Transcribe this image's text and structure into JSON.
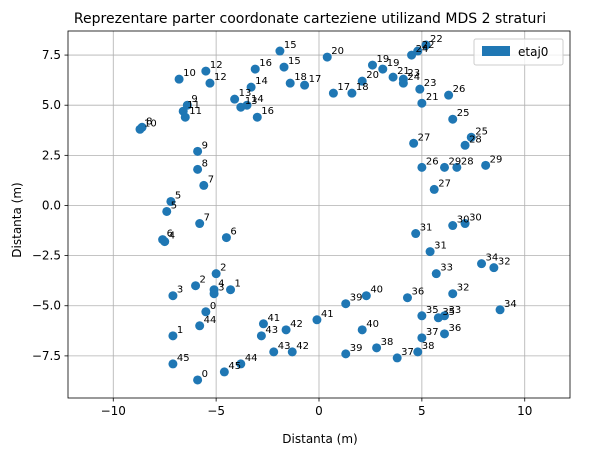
{
  "chart_data": {
    "type": "scatter",
    "title": "Reprezentare parter coordonate carteziene utilizand MDS 2 straturi",
    "xlabel": "Distanta (m)",
    "ylabel": "Distanta (m)",
    "xlim": [
      -12.2,
      12.2
    ],
    "ylim": [
      -9.6,
      8.7
    ],
    "xticks": [
      -10,
      -5,
      0,
      5,
      10
    ],
    "yticks": [
      -7.5,
      -5.0,
      -2.5,
      0.0,
      2.5,
      5.0,
      7.5
    ],
    "grid": true,
    "legend_position": "top-right",
    "color": "#1f77b4",
    "series": [
      {
        "name": "etaj0",
        "points": [
          {
            "x": 5.2,
            "y": 8.0,
            "label": "22"
          },
          {
            "x": 4.5,
            "y": 7.5,
            "label": "24"
          },
          {
            "x": 4.8,
            "y": 7.7,
            "label": "22"
          },
          {
            "x": -1.9,
            "y": 7.7,
            "label": "15"
          },
          {
            "x": 0.4,
            "y": 7.4,
            "label": "20"
          },
          {
            "x": -1.7,
            "y": 6.9,
            "label": "15"
          },
          {
            "x": -3.1,
            "y": 6.8,
            "label": "16"
          },
          {
            "x": -5.5,
            "y": 6.7,
            "label": "12"
          },
          {
            "x": -6.8,
            "y": 6.3,
            "label": "10"
          },
          {
            "x": -5.3,
            "y": 6.1,
            "label": "12"
          },
          {
            "x": 2.6,
            "y": 7.0,
            "label": "19"
          },
          {
            "x": 3.1,
            "y": 6.8,
            "label": "19"
          },
          {
            "x": 3.6,
            "y": 6.4,
            "label": "21"
          },
          {
            "x": 4.1,
            "y": 6.3,
            "label": "23"
          },
          {
            "x": 4.1,
            "y": 6.1,
            "label": "24"
          },
          {
            "x": 2.1,
            "y": 6.2,
            "label": "20"
          },
          {
            "x": -1.4,
            "y": 6.1,
            "label": "18"
          },
          {
            "x": -0.7,
            "y": 6.0,
            "label": "17"
          },
          {
            "x": 4.9,
            "y": 5.8,
            "label": "23"
          },
          {
            "x": 0.7,
            "y": 5.6,
            "label": "17"
          },
          {
            "x": 1.6,
            "y": 5.6,
            "label": "18"
          },
          {
            "x": 6.3,
            "y": 5.5,
            "label": "26"
          },
          {
            "x": 5.0,
            "y": 5.1,
            "label": "21"
          },
          {
            "x": -3.3,
            "y": 5.9,
            "label": "14"
          },
          {
            "x": -4.1,
            "y": 5.3,
            "label": "13"
          },
          {
            "x": -3.8,
            "y": 4.9,
            "label": "13"
          },
          {
            "x": -3.5,
            "y": 5.0,
            "label": "14"
          },
          {
            "x": -6.4,
            "y": 5.0,
            "label": "9"
          },
          {
            "x": -6.6,
            "y": 4.7,
            "label": "11"
          },
          {
            "x": -6.5,
            "y": 4.4,
            "label": "11"
          },
          {
            "x": -3.0,
            "y": 4.4,
            "label": "16"
          },
          {
            "x": -8.6,
            "y": 3.9,
            "label": "8"
          },
          {
            "x": -8.7,
            "y": 3.8,
            "label": "10"
          },
          {
            "x": 6.5,
            "y": 4.3,
            "label": "25"
          },
          {
            "x": 7.4,
            "y": 3.4,
            "label": "25"
          },
          {
            "x": 7.1,
            "y": 3.0,
            "label": "28"
          },
          {
            "x": 4.6,
            "y": 3.1,
            "label": "27"
          },
          {
            "x": -5.9,
            "y": 2.7,
            "label": "9"
          },
          {
            "x": 5.0,
            "y": 1.9,
            "label": "26"
          },
          {
            "x": 6.1,
            "y": 1.9,
            "label": "29"
          },
          {
            "x": 6.7,
            "y": 1.9,
            "label": "28"
          },
          {
            "x": 8.1,
            "y": 2.0,
            "label": "29"
          },
          {
            "x": -5.9,
            "y": 1.8,
            "label": "8"
          },
          {
            "x": -5.6,
            "y": 1.0,
            "label": "7"
          },
          {
            "x": 5.6,
            "y": 0.8,
            "label": "27"
          },
          {
            "x": -7.2,
            "y": 0.2,
            "label": "5"
          },
          {
            "x": -7.4,
            "y": -0.3,
            "label": "5"
          },
          {
            "x": -5.8,
            "y": -0.9,
            "label": "7"
          },
          {
            "x": 6.5,
            "y": -1.0,
            "label": "30"
          },
          {
            "x": 7.1,
            "y": -0.9,
            "label": "30"
          },
          {
            "x": 4.7,
            "y": -1.4,
            "label": "31"
          },
          {
            "x": -4.5,
            "y": -1.6,
            "label": "6"
          },
          {
            "x": -7.6,
            "y": -1.7,
            "label": "6"
          },
          {
            "x": -7.5,
            "y": -1.8,
            "label": "4"
          },
          {
            "x": 5.4,
            "y": -2.3,
            "label": "31"
          },
          {
            "x": 7.9,
            "y": -2.9,
            "label": "34"
          },
          {
            "x": 8.5,
            "y": -3.1,
            "label": "32"
          },
          {
            "x": 5.7,
            "y": -3.4,
            "label": "33"
          },
          {
            "x": -5.0,
            "y": -3.4,
            "label": "2"
          },
          {
            "x": -6.0,
            "y": -4.0,
            "label": "2"
          },
          {
            "x": -5.1,
            "y": -4.2,
            "label": "4"
          },
          {
            "x": -4.3,
            "y": -4.2,
            "label": "1"
          },
          {
            "x": -7.1,
            "y": -4.5,
            "label": "3"
          },
          {
            "x": -5.1,
            "y": -4.4,
            "label": "3"
          },
          {
            "x": 2.3,
            "y": -4.5,
            "label": "40"
          },
          {
            "x": 6.5,
            "y": -4.4,
            "label": "32"
          },
          {
            "x": 4.3,
            "y": -4.6,
            "label": "36"
          },
          {
            "x": 1.3,
            "y": -4.9,
            "label": "39"
          },
          {
            "x": -5.5,
            "y": -5.3,
            "label": "0"
          },
          {
            "x": 8.8,
            "y": -5.2,
            "label": "34"
          },
          {
            "x": 5.0,
            "y": -5.5,
            "label": "35"
          },
          {
            "x": 5.8,
            "y": -5.6,
            "label": "35"
          },
          {
            "x": 6.1,
            "y": -5.5,
            "label": "33"
          },
          {
            "x": -0.1,
            "y": -5.7,
            "label": "41"
          },
          {
            "x": -2.7,
            "y": -5.9,
            "label": "41"
          },
          {
            "x": -5.8,
            "y": -6.0,
            "label": "44"
          },
          {
            "x": -1.6,
            "y": -6.2,
            "label": "42"
          },
          {
            "x": 2.1,
            "y": -6.2,
            "label": "40"
          },
          {
            "x": 6.1,
            "y": -6.4,
            "label": "36"
          },
          {
            "x": -2.8,
            "y": -6.5,
            "label": "43"
          },
          {
            "x": -7.1,
            "y": -6.5,
            "label": "1"
          },
          {
            "x": 5.0,
            "y": -6.6,
            "label": "37"
          },
          {
            "x": 2.8,
            "y": -7.1,
            "label": "38"
          },
          {
            "x": 4.8,
            "y": -7.3,
            "label": "38"
          },
          {
            "x": -2.2,
            "y": -7.3,
            "label": "43"
          },
          {
            "x": -1.3,
            "y": -7.3,
            "label": "42"
          },
          {
            "x": 1.3,
            "y": -7.4,
            "label": "39"
          },
          {
            "x": 3.8,
            "y": -7.6,
            "label": "37"
          },
          {
            "x": -7.1,
            "y": -7.9,
            "label": "45"
          },
          {
            "x": -3.8,
            "y": -7.9,
            "label": "44"
          },
          {
            "x": -4.6,
            "y": -8.3,
            "label": "45"
          },
          {
            "x": -5.9,
            "y": -8.7,
            "label": "0"
          }
        ]
      }
    ]
  }
}
